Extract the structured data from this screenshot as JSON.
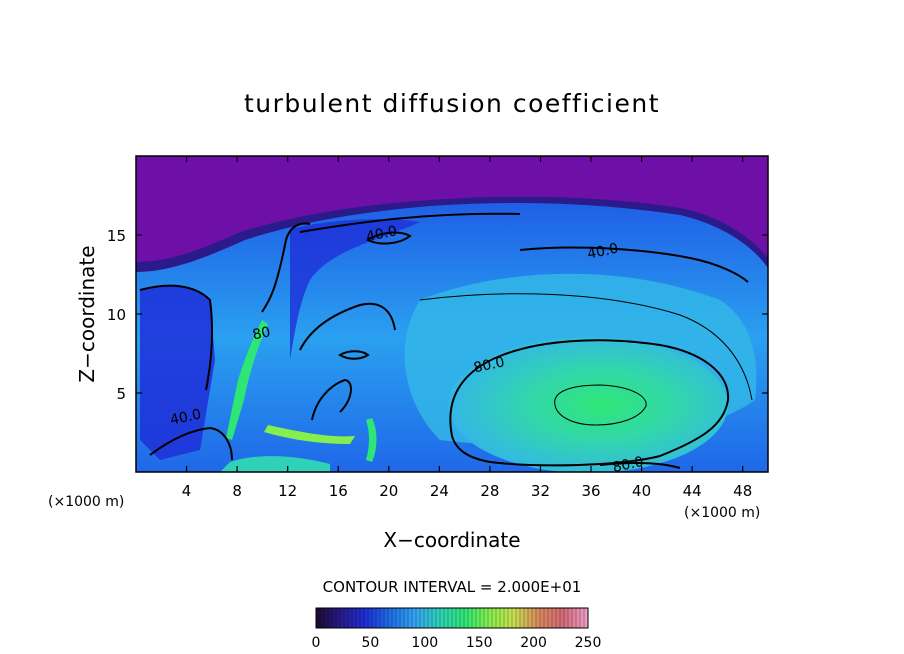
{
  "chart_data": {
    "type": "heatmap",
    "title": "turbulent diffusion coefficient",
    "xlabel": "X−coordinate",
    "ylabel": "Z−coordinate",
    "x_unit_left": "(×1000 m)",
    "x_unit_right": "(×1000 m)",
    "xlim": [
      0,
      50
    ],
    "ylim": [
      0,
      20
    ],
    "x_ticks": [
      4,
      8,
      12,
      16,
      20,
      24,
      28,
      32,
      36,
      40,
      44,
      48
    ],
    "y_ticks": [
      5,
      10,
      15
    ],
    "contour_interval_text": "CONTOUR INTERVAL = 2.000E+01",
    "contour_labels": [
      {
        "text": "40.0",
        "x": 19.5,
        "z": 14.8
      },
      {
        "text": "40.0",
        "x": 37.0,
        "z": 13.7
      },
      {
        "text": "80.0",
        "x": 28.0,
        "z": 6.5
      },
      {
        "text": "80.0",
        "x": 39.0,
        "z": 0.2
      },
      {
        "text": "40.0",
        "x": 4.0,
        "z": 3.2
      },
      {
        "text": "80",
        "x": 10.0,
        "z": 8.5
      }
    ],
    "colorbar": {
      "min": 0,
      "max": 250,
      "ticks": [
        0,
        50,
        100,
        150,
        200,
        250
      ],
      "colors": [
        "#1c0a2e",
        "#2a1a8a",
        "#1e2fd8",
        "#1e6fe6",
        "#33a4f2",
        "#2fd2b8",
        "#2ee676",
        "#86ef4e",
        "#c8e050",
        "#d98a5a",
        "#d46a78",
        "#f0a0c8"
      ]
    },
    "background_color": "#6e0fa8"
  }
}
